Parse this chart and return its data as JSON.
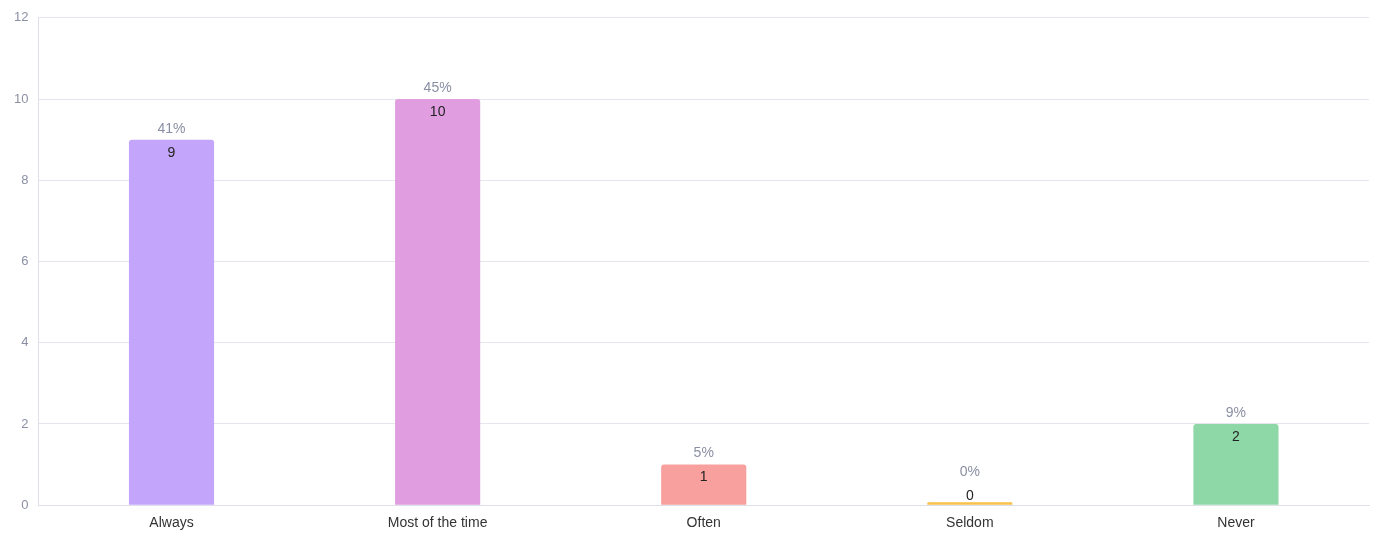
{
  "chart_data": {
    "type": "bar",
    "categories": [
      "Always",
      "Most of the time",
      "Often",
      "Seldom",
      "Never"
    ],
    "values": [
      9,
      10,
      1,
      0,
      2
    ],
    "colors": [
      "#c4a5fc",
      "#e09ee0",
      "#f7a09e",
      "#f9c04a",
      "#8ed8a8"
    ],
    "ylim": [
      0,
      12
    ],
    "yticks": [
      0,
      2,
      4,
      6,
      8,
      10,
      12
    ],
    "grid": "y",
    "legend": false,
    "data_labels": true,
    "annotations": [
      {
        "text": "41%",
        "x": "Always",
        "y": 9
      },
      {
        "text": "45%",
        "x": "Most of the time",
        "y": 10
      },
      {
        "text": "5%",
        "x": "Often",
        "y": 1
      },
      {
        "text": "0%",
        "x": "Seldom",
        "y": 0
      },
      {
        "text": "9%",
        "x": "Never",
        "y": 2
      }
    ]
  }
}
